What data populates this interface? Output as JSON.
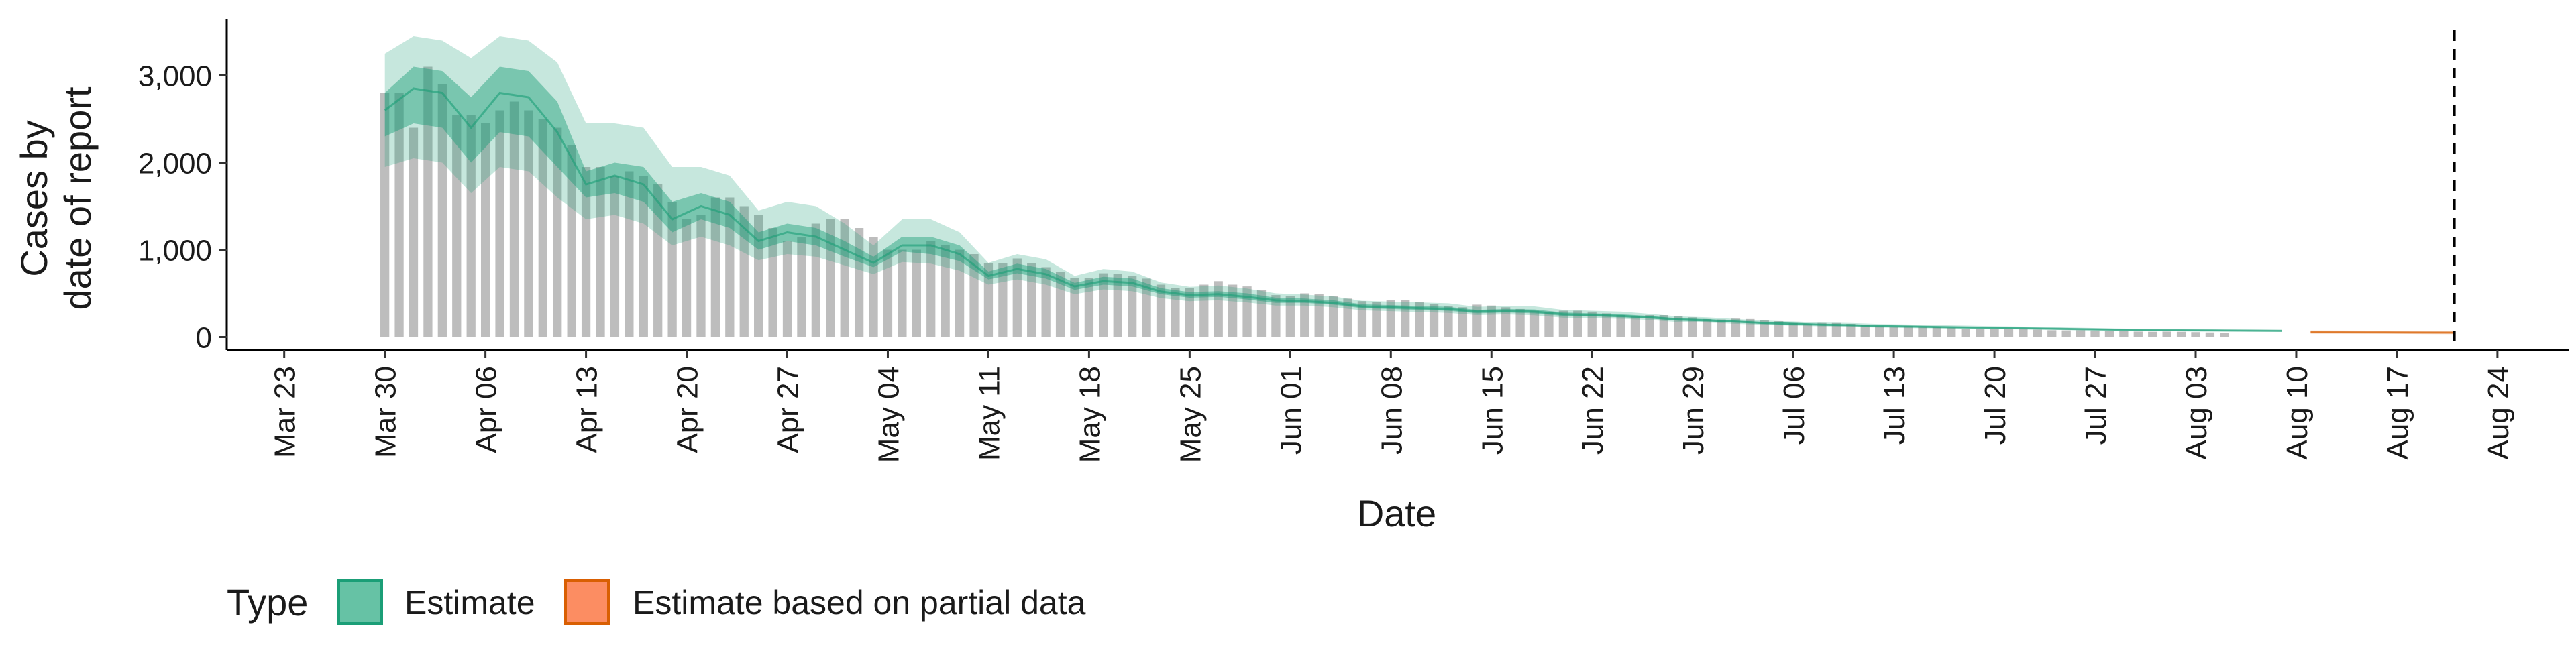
{
  "chart_data": {
    "type": "bar",
    "title": "",
    "xlabel": "Date",
    "ylabel": [
      "Cases by",
      "date of report"
    ],
    "ylim": [
      -150,
      3650
    ],
    "xlim": [
      "2020-03-19",
      "2020-08-29"
    ],
    "yticks": [
      0,
      1000,
      2000,
      3000
    ],
    "ytick_labels": [
      "0",
      "1,000",
      "2,000",
      "3,000"
    ],
    "xticks": [
      "2020-03-23",
      "2020-03-30",
      "2020-04-06",
      "2020-04-13",
      "2020-04-20",
      "2020-04-27",
      "2020-05-04",
      "2020-05-11",
      "2020-05-18",
      "2020-05-25",
      "2020-06-01",
      "2020-06-08",
      "2020-06-15",
      "2020-06-22",
      "2020-06-29",
      "2020-07-06",
      "2020-07-13",
      "2020-07-20",
      "2020-07-27",
      "2020-08-03",
      "2020-08-10",
      "2020-08-17",
      "2020-08-24"
    ],
    "xtick_labels": [
      "Mar 23",
      "Mar 30",
      "Apr 06",
      "Apr 13",
      "Apr 20",
      "Apr 27",
      "May 04",
      "May 11",
      "May 18",
      "May 25",
      "Jun 01",
      "Jun 08",
      "Jun 15",
      "Jun 22",
      "Jun 29",
      "Jul 06",
      "Jul 13",
      "Jul 20",
      "Jul 27",
      "Aug 03",
      "Aug 10",
      "Aug 17",
      "Aug 24"
    ],
    "reported_cases": {
      "start_date": "2020-03-30",
      "values": [
        2800,
        2800,
        2400,
        3100,
        2900,
        2550,
        2550,
        2450,
        2600,
        2700,
        2600,
        2500,
        2400,
        2200,
        1950,
        1950,
        1850,
        1900,
        1850,
        1750,
        1550,
        1350,
        1400,
        1600,
        1600,
        1500,
        1400,
        1250,
        1100,
        1150,
        1300,
        1350,
        1350,
        1250,
        1150,
        1000,
        1000,
        1000,
        1100,
        1050,
        1000,
        950,
        850,
        850,
        900,
        850,
        800,
        750,
        680,
        680,
        730,
        720,
        700,
        670,
        600,
        560,
        560,
        600,
        640,
        600,
        580,
        540,
        480,
        470,
        500,
        490,
        470,
        440,
        410,
        400,
        420,
        420,
        400,
        380,
        350,
        340,
        370,
        360,
        340,
        320,
        300,
        290,
        300,
        300,
        290,
        270,
        250,
        240,
        250,
        250,
        240,
        225,
        205,
        200,
        210,
        205,
        195,
        180,
        160,
        150,
        160,
        160,
        150,
        140,
        125,
        115,
        125,
        120,
        115,
        105,
        95,
        90,
        95,
        92,
        90,
        84,
        78,
        76,
        78,
        75,
        72,
        68,
        62,
        60,
        62,
        60,
        56,
        52,
        48
      ]
    },
    "series": [
      {
        "name": "Estimate",
        "color": "#1b9e77",
        "dates": [
          "2020-03-30",
          "2020-04-01",
          "2020-04-03",
          "2020-04-05",
          "2020-04-07",
          "2020-04-09",
          "2020-04-11",
          "2020-04-13",
          "2020-04-15",
          "2020-04-17",
          "2020-04-19",
          "2020-04-21",
          "2020-04-23",
          "2020-04-25",
          "2020-04-27",
          "2020-04-29",
          "2020-05-01",
          "2020-05-03",
          "2020-05-05",
          "2020-05-07",
          "2020-05-09",
          "2020-05-11",
          "2020-05-13",
          "2020-05-15",
          "2020-05-17",
          "2020-05-19",
          "2020-05-21",
          "2020-05-23",
          "2020-05-25",
          "2020-05-27",
          "2020-05-29",
          "2020-05-31",
          "2020-06-02",
          "2020-06-04",
          "2020-06-06",
          "2020-06-08",
          "2020-06-10",
          "2020-06-12",
          "2020-06-14",
          "2020-06-16",
          "2020-06-18",
          "2020-06-20",
          "2020-06-22",
          "2020-06-24",
          "2020-06-26",
          "2020-06-28",
          "2020-06-30",
          "2020-07-02",
          "2020-07-04",
          "2020-07-06",
          "2020-07-08",
          "2020-07-10",
          "2020-07-12",
          "2020-07-14",
          "2020-07-16",
          "2020-07-18",
          "2020-07-20",
          "2020-07-22",
          "2020-07-24",
          "2020-07-26",
          "2020-07-28",
          "2020-07-30",
          "2020-08-01",
          "2020-08-03",
          "2020-08-05",
          "2020-08-07",
          "2020-08-09"
        ],
        "median": [
          2600,
          2850,
          2800,
          2400,
          2800,
          2750,
          2350,
          1750,
          1850,
          1750,
          1350,
          1500,
          1400,
          1100,
          1200,
          1150,
          1000,
          850,
          1050,
          1050,
          950,
          700,
          780,
          720,
          580,
          640,
          620,
          520,
          480,
          490,
          460,
          420,
          410,
          390,
          350,
          340,
          330,
          320,
          290,
          300,
          290,
          260,
          250,
          240,
          225,
          200,
          190,
          175,
          160,
          150,
          140,
          135,
          125,
          120,
          115,
          110,
          105,
          100,
          95,
          90,
          85,
          80,
          78,
          76,
          74,
          72,
          70
        ],
        "ci50_lower": [
          2300,
          2450,
          2400,
          2000,
          2350,
          2300,
          1950,
          1600,
          1650,
          1550,
          1200,
          1350,
          1250,
          1000,
          1100,
          1050,
          920,
          800,
          980,
          950,
          870,
          660,
          730,
          670,
          540,
          600,
          580,
          490,
          450,
          460,
          430,
          390,
          390,
          370,
          330,
          320,
          310,
          300,
          270,
          280,
          270,
          240,
          235,
          225,
          210,
          185,
          178,
          163,
          150,
          140,
          131,
          126,
          117,
          112,
          107,
          102,
          98,
          93,
          88,
          84,
          79,
          74,
          72,
          70,
          69,
          67,
          65
        ],
        "ci50_upper": [
          2800,
          3100,
          3050,
          2750,
          3100,
          3050,
          2700,
          1900,
          2000,
          1950,
          1550,
          1650,
          1550,
          1200,
          1300,
          1250,
          1100,
          920,
          1150,
          1150,
          1050,
          750,
          840,
          780,
          620,
          690,
          670,
          560,
          515,
          525,
          500,
          450,
          440,
          420,
          375,
          365,
          355,
          345,
          310,
          320,
          315,
          280,
          270,
          260,
          240,
          215,
          205,
          188,
          172,
          162,
          150,
          145,
          135,
          130,
          124,
          119,
          113,
          108,
          103,
          97,
          92,
          86,
          84,
          82,
          80,
          78,
          76
        ],
        "ci90_lower": [
          1950,
          2050,
          2000,
          1650,
          1950,
          1900,
          1600,
          1350,
          1400,
          1300,
          1050,
          1150,
          1050,
          880,
          950,
          920,
          820,
          720,
          860,
          840,
          760,
          600,
          660,
          600,
          490,
          545,
          525,
          445,
          410,
          420,
          395,
          360,
          360,
          340,
          305,
          295,
          285,
          275,
          250,
          258,
          248,
          220,
          215,
          208,
          194,
          170,
          165,
          151,
          139,
          130,
          122,
          117,
          108,
          103,
          99,
          94,
          90,
          86,
          82,
          77,
          73,
          68,
          66,
          64,
          63,
          61,
          59
        ],
        "ci90_upper": [
          3250,
          3450,
          3400,
          3200,
          3450,
          3400,
          3150,
          2450,
          2450,
          2400,
          1950,
          1950,
          1850,
          1450,
          1550,
          1500,
          1300,
          1050,
          1350,
          1350,
          1200,
          850,
          950,
          890,
          700,
          780,
          750,
          625,
          575,
          590,
          555,
          500,
          485,
          465,
          415,
          405,
          395,
          385,
          345,
          355,
          350,
          310,
          300,
          290,
          265,
          235,
          225,
          206,
          188,
          178,
          165,
          160,
          148,
          143,
          137,
          131,
          124,
          119,
          113,
          107,
          100,
          94,
          92,
          90,
          88,
          86,
          84
        ]
      },
      {
        "name": "Estimate based on partial data",
        "color": "#d95f02",
        "dates": [
          "2020-08-11",
          "2020-08-13",
          "2020-08-15",
          "2020-08-17",
          "2020-08-19",
          "2020-08-21"
        ],
        "median": [
          55,
          54,
          53,
          52,
          51,
          50
        ],
        "ci50_lower": [
          48,
          47,
          46,
          45,
          44,
          43
        ],
        "ci50_upper": [
          62,
          61,
          60,
          59,
          58,
          57
        ],
        "ci90_lower": [
          38,
          37,
          36,
          35,
          34,
          33
        ],
        "ci90_upper": [
          75,
          74,
          73,
          72,
          71,
          70
        ]
      }
    ],
    "vline_date": "2020-08-21",
    "legend": {
      "title": "Type",
      "position": "bottom",
      "entries": [
        "Estimate",
        "Estimate based on partial data"
      ]
    },
    "colors": {
      "bars": "#bdbdbd",
      "estimate": "#1b9e77",
      "partial": "#d95f02",
      "legend_estimate_fill": "#66c2a5",
      "legend_partial_fill": "#fc8d62"
    },
    "grid": false
  }
}
